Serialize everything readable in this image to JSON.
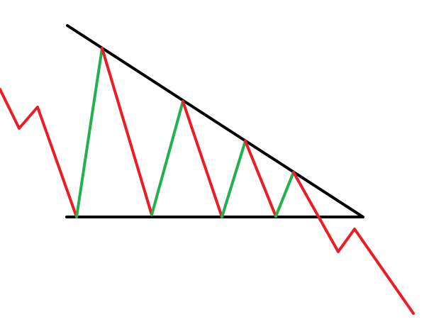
{
  "diagram": {
    "pattern": "descending-triangle",
    "colors": {
      "background": "#ffffff",
      "trendline": "#000000",
      "support": "#000000",
      "up_leg": "#22b14c",
      "down_leg": "#ed1c24"
    }
  }
}
